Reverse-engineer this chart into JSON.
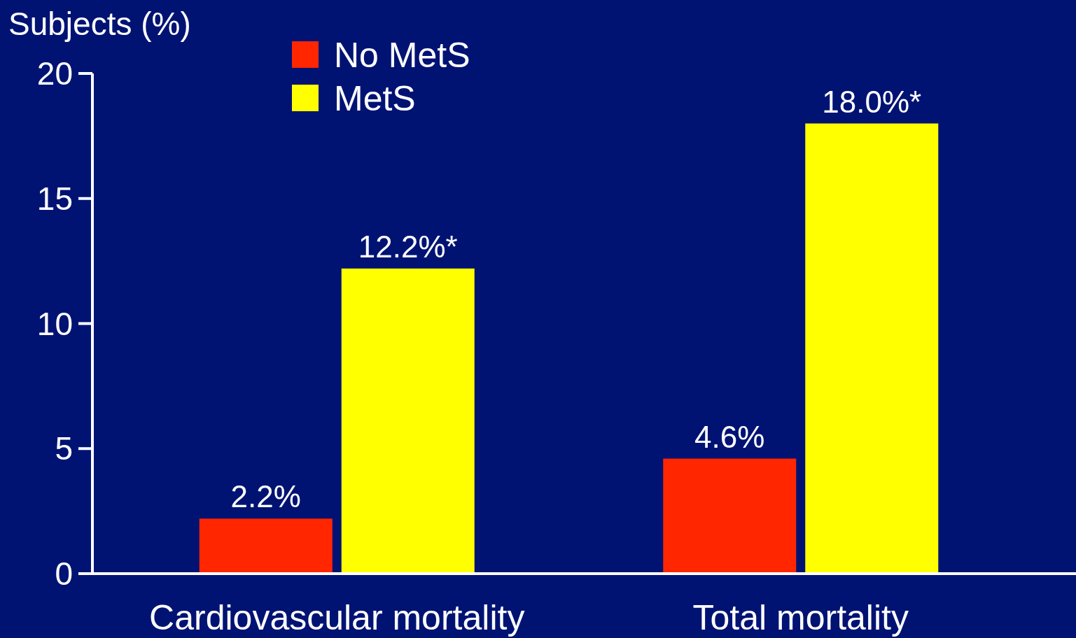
{
  "chart_data": {
    "type": "bar",
    "ylabel": "Subjects (%)",
    "categories": [
      "Cardiovascular mortality",
      "Total mortality"
    ],
    "series": [
      {
        "name": "No MetS",
        "color": "#ff2600",
        "values": [
          2.2,
          4.6
        ],
        "value_labels": [
          "2.2%",
          "4.6%"
        ]
      },
      {
        "name": "MetS",
        "color": "#ffff00",
        "values": [
          12.2,
          18.0
        ],
        "value_labels": [
          "12.2%*",
          "18.0%*"
        ]
      }
    ],
    "ylim": [
      0,
      20
    ],
    "yticks": [
      0,
      5,
      10,
      15,
      20
    ],
    "grid": false,
    "legend": "top left"
  }
}
